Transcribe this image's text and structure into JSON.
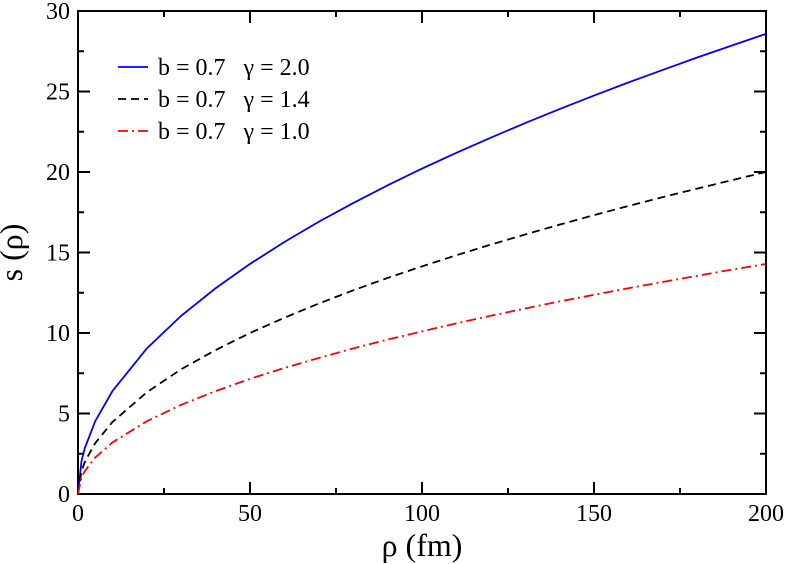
{
  "chart_data": {
    "type": "line",
    "title": "",
    "xlabel": "ρ (fm)",
    "ylabel": "s (ρ)",
    "xlim": [
      0,
      200
    ],
    "ylim": [
      0,
      30
    ],
    "x_ticks": [
      0,
      50,
      100,
      150,
      200
    ],
    "y_ticks": [
      0,
      5,
      10,
      15,
      20,
      25,
      30
    ],
    "grid": false,
    "legend_position": "top-left",
    "x": [
      0,
      1,
      2,
      5,
      10,
      20,
      30,
      40,
      50,
      60,
      70,
      80,
      90,
      100,
      110,
      120,
      130,
      140,
      150,
      160,
      170,
      180,
      190,
      200
    ],
    "series": [
      {
        "name": "b = 0.7   γ = 2.0",
        "color": "#0000ff",
        "dash": "solid",
        "values": [
          0,
          2.02,
          2.86,
          4.52,
          6.39,
          9.04,
          11.07,
          12.78,
          14.29,
          15.65,
          16.91,
          18.07,
          19.17,
          20.21,
          21.19,
          22.13,
          23.04,
          23.91,
          24.75,
          25.56,
          26.34,
          27.11,
          27.85,
          28.58
        ]
      },
      {
        "name": "b = 0.7   γ = 1.4",
        "color": "#000000",
        "dash": "dashed",
        "values": [
          0,
          1.41,
          2.0,
          3.16,
          4.47,
          6.32,
          7.75,
          8.94,
          10.0,
          10.95,
          11.83,
          12.65,
          13.42,
          14.14,
          14.83,
          15.49,
          16.12,
          16.73,
          17.32,
          17.89,
          18.44,
          18.97,
          19.49,
          20.0
        ]
      },
      {
        "name": "b = 0.7   γ = 1.0",
        "color": "#ff0000",
        "dash": "dash-dot",
        "values": [
          0,
          1.01,
          1.43,
          2.26,
          3.2,
          4.52,
          5.54,
          6.39,
          7.15,
          7.83,
          8.45,
          9.04,
          9.59,
          10.1,
          10.6,
          11.07,
          11.52,
          11.96,
          12.37,
          12.78,
          13.17,
          13.55,
          13.93,
          14.29
        ]
      }
    ]
  }
}
